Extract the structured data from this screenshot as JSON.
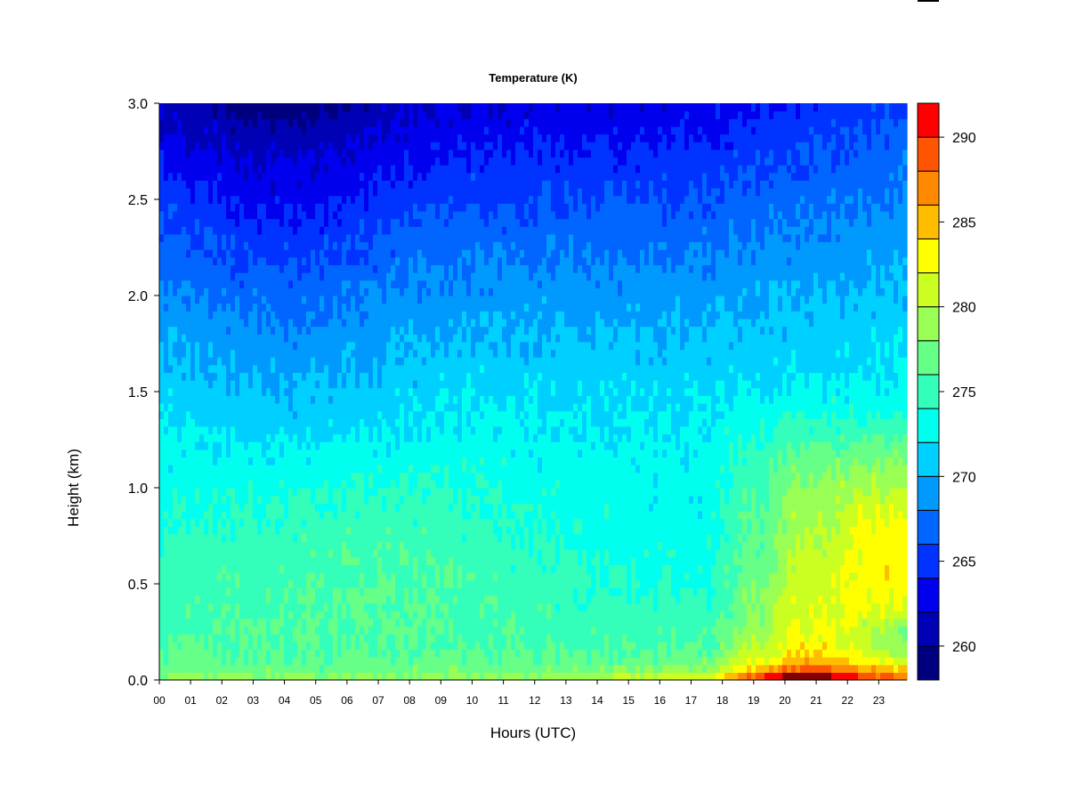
{
  "chart_data": {
    "type": "heatmap",
    "title": "Temperature (K)",
    "xlabel": "Hours (UTC)",
    "ylabel": "Height (km)",
    "x_ticks": [
      "00",
      "01",
      "02",
      "03",
      "04",
      "05",
      "06",
      "07",
      "08",
      "09",
      "10",
      "11",
      "12",
      "13",
      "14",
      "15",
      "16",
      "17",
      "18",
      "19",
      "20",
      "21",
      "22",
      "23"
    ],
    "y_ticks": [
      "0.0",
      "0.5",
      "1.0",
      "1.5",
      "2.0",
      "2.5",
      "3.0"
    ],
    "xlim": [
      0,
      23.9
    ],
    "ylim": [
      0,
      3.0
    ],
    "colorbar": {
      "ticks": [
        "260",
        "265",
        "270",
        "275",
        "280",
        "285",
        "290"
      ],
      "range": [
        258,
        292
      ],
      "levels": [
        258,
        260,
        262,
        264,
        266,
        268,
        270,
        272,
        274,
        276,
        278,
        280,
        282,
        284,
        286,
        288,
        290,
        292
      ],
      "colors": [
        "#00007f",
        "#0000b5",
        "#0000ee",
        "#0033ff",
        "#0066ff",
        "#009aff",
        "#00d0ff",
        "#00ffef",
        "#33ffbb",
        "#66ff88",
        "#99ff55",
        "#cbff22",
        "#ffff00",
        "#ffbd00",
        "#ff8900",
        "#ff5500",
        "#ff0000",
        "#bd0000",
        "#800000"
      ]
    }
  }
}
